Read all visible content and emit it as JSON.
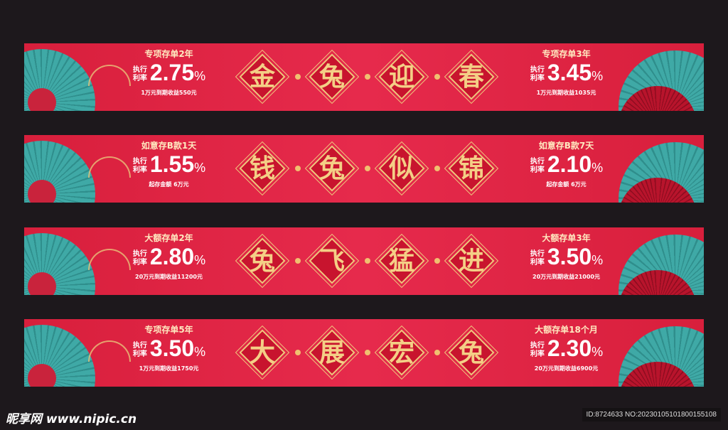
{
  "banners": [
    {
      "chars": [
        "金",
        "兔",
        "迎",
        "春"
      ],
      "left": {
        "title": "专项存单2年",
        "label": "执行利率",
        "rate": "2.75",
        "pct": "%",
        "sub": "1万元到期收益550元"
      },
      "right": {
        "title": "专项存单3年",
        "label": "执行利率",
        "rate": "3.45",
        "pct": "%",
        "sub": "1万元到期收益1035元"
      }
    },
    {
      "chars": [
        "钱",
        "兔",
        "似",
        "锦"
      ],
      "left": {
        "title": "如意存B款1天",
        "label": "执行利率",
        "rate": "1.55",
        "pct": "%",
        "sub": "起存金额 6万元"
      },
      "right": {
        "title": "如意存B款7天",
        "label": "执行利率",
        "rate": "2.10",
        "pct": "%",
        "sub": "起存金额 6万元"
      }
    },
    {
      "chars": [
        "兔",
        "飞",
        "猛",
        "进"
      ],
      "left": {
        "title": "大额存单2年",
        "label": "执行利率",
        "rate": "2.80",
        "pct": "%",
        "sub": "20万元到期收益11200元"
      },
      "right": {
        "title": "大额存单3年",
        "label": "执行利率",
        "rate": "3.50",
        "pct": "%",
        "sub": "20万元到期收益21000元"
      }
    },
    {
      "chars": [
        "大",
        "展",
        "宏",
        "兔"
      ],
      "left": {
        "title": "专项存单5年",
        "label": "执行利率",
        "rate": "3.50",
        "pct": "%",
        "sub": "1万元到期收益1750元"
      },
      "right": {
        "title": "大额存单18个月",
        "label": "执行利率",
        "rate": "2.30",
        "pct": "%",
        "sub": "20万元到期收益6900元"
      }
    }
  ],
  "footer": {
    "logo": "昵享网 www.nipic.cn",
    "id": "ID:8724633 NO:20230105101800155108"
  },
  "colors": {
    "banner": "#e62a4c",
    "gold": "#efc77d",
    "teal": "#3fa9a6",
    "background": "#1d181c"
  }
}
